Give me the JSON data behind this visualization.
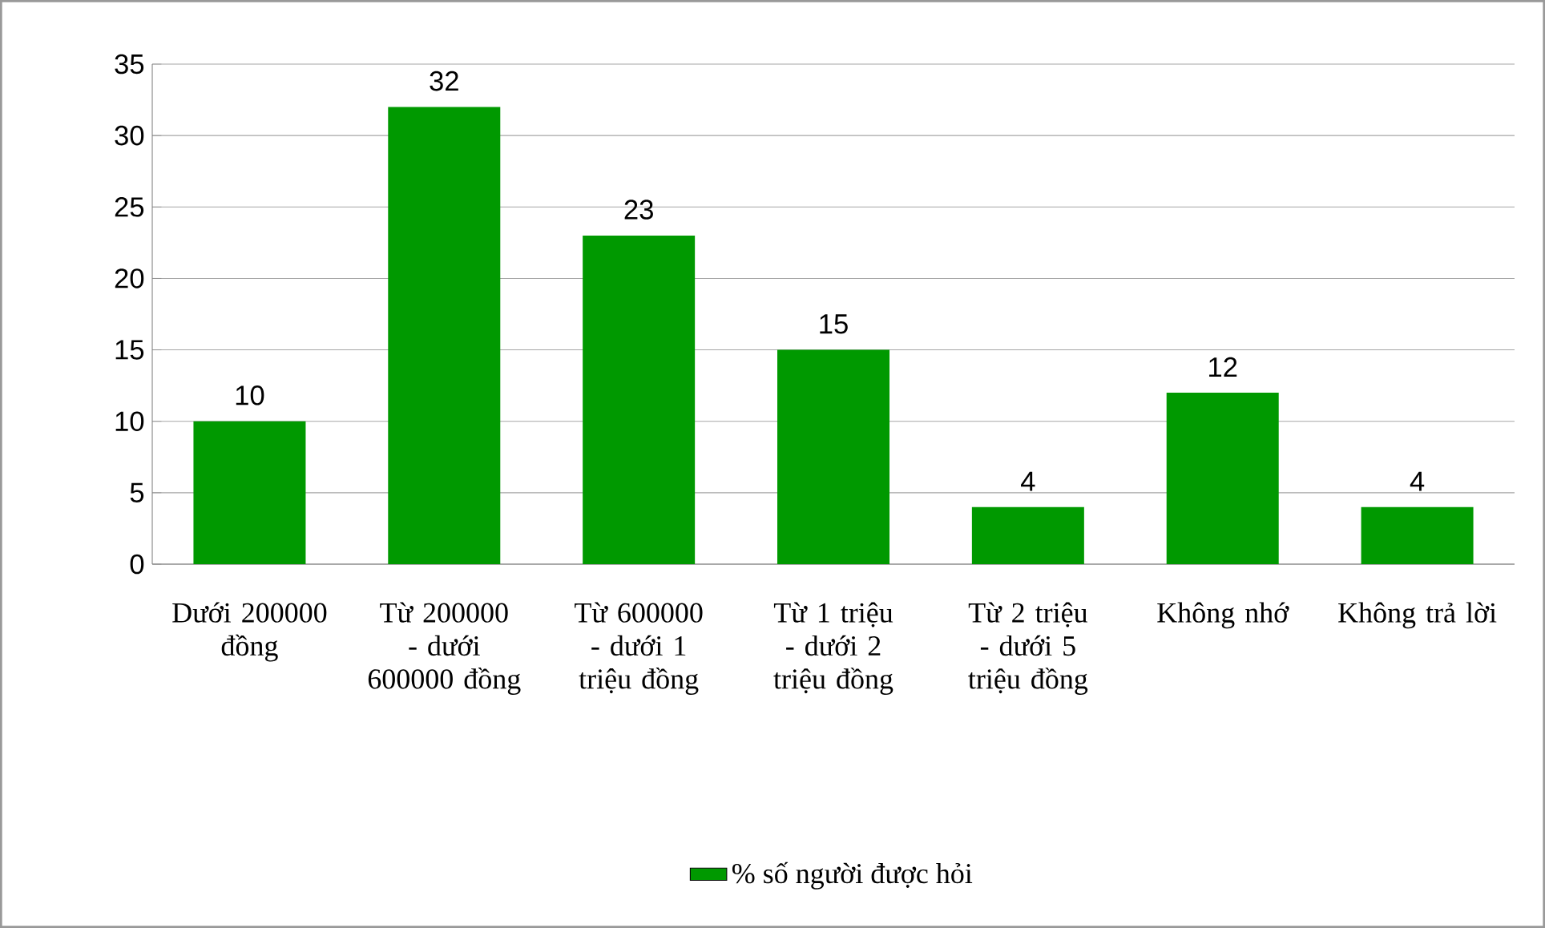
{
  "chart_data": {
    "type": "bar",
    "categories": [
      "Dưới 200000 đồng",
      "Từ 200000 - dưới 600000 đồng",
      "Từ 600000 - dưới 1 triệu đồng",
      "Từ 1 triệu - dưới 2 triệu đồng",
      "Từ 2 triệu - dưới 5 triệu đồng",
      "Không nhớ",
      "Không trả lời"
    ],
    "series": [
      {
        "name": "% số người được hỏi",
        "color": "#009900",
        "values": [
          10,
          32,
          23,
          15,
          4,
          12,
          4
        ]
      }
    ],
    "ylim": [
      0,
      35
    ],
    "yticks": [
      0,
      5,
      10,
      15,
      20,
      25,
      30,
      35
    ],
    "grid": "y",
    "legend": "bottom",
    "data_labels": true
  }
}
